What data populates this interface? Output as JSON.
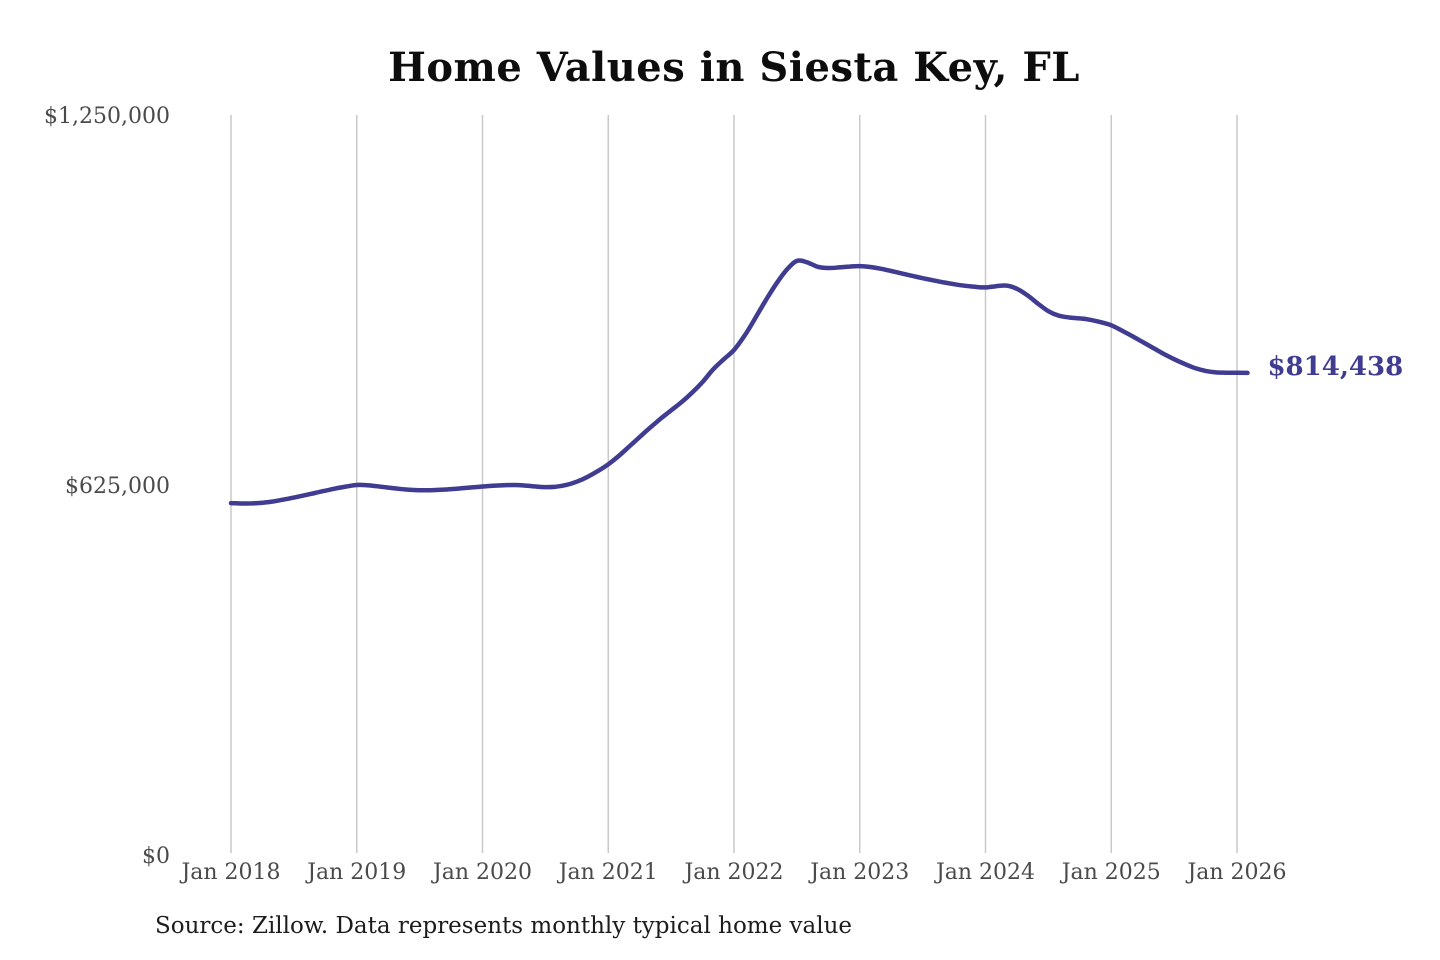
{
  "page": {
    "background_color": "#ffffff"
  },
  "chart": {
    "title": "Home Values in Siesta Key, FL",
    "end_label": "$814,438",
    "source": "Source: Zillow. Data represents monthly typical home value"
  },
  "colors": {
    "line": "#403c92",
    "end_label": "#403c92",
    "gridline": "#c9c9c9",
    "axis_label": "#4a4a4a",
    "title": "#0d0d0d",
    "source": "#1c1c1c"
  },
  "chart_data": {
    "type": "line",
    "title": "Home Values in Siesta Key, FL",
    "ylabel": "",
    "xlabel": "",
    "ylim": [
      0,
      1250000
    ],
    "grid": "vertical-only",
    "legend_position": "none",
    "y_ticks": [
      {
        "label": "$1,250,000",
        "value": 1250000
      },
      {
        "label": "$625,000",
        "value": 625000
      },
      {
        "label": "$0",
        "value": 0
      }
    ],
    "x_tick_labels": [
      "Jan 2018",
      "Jan 2019",
      "Jan 2020",
      "Jan 2021",
      "Jan 2022",
      "Jan 2023",
      "Jan 2024",
      "Jan 2025",
      "Jan 2026"
    ],
    "series_start_month": "2018-01",
    "series_end_month": "2026-02",
    "months_per_x_tick": 12,
    "final_value": 814438,
    "monthly_values": [
      594500,
      593800,
      594000,
      595000,
      597200,
      600300,
      603800,
      607600,
      611500,
      615400,
      619200,
      622400,
      625000,
      624600,
      622800,
      620600,
      618500,
      617000,
      616200,
      616200,
      616900,
      618000,
      619400,
      621000,
      622400,
      623600,
      624600,
      625000,
      624200,
      622600,
      621400,
      622200,
      625200,
      630500,
      638500,
      648500,
      660000,
      674000,
      690000,
      706000,
      722000,
      737000,
      751000,
      765000,
      781000,
      799000,
      820000,
      837000,
      853000,
      877000,
      906000,
      936000,
      964000,
      988000,
      1003500,
      1001000,
      993500,
      991500,
      992500,
      994000,
      994800,
      993200,
      990300,
      986500,
      982400,
      978300,
      974400,
      970700,
      967300,
      964200,
      961600,
      959800,
      958800,
      960800,
      961800,
      956500,
      945500,
      931500,
      918500,
      911000,
      908000,
      906500,
      904000,
      900000,
      894800,
      886000,
      876500,
      866500,
      856500,
      846500,
      837500,
      829500,
      822500,
      817800,
      815200,
      814700,
      814500,
      814438
    ]
  }
}
